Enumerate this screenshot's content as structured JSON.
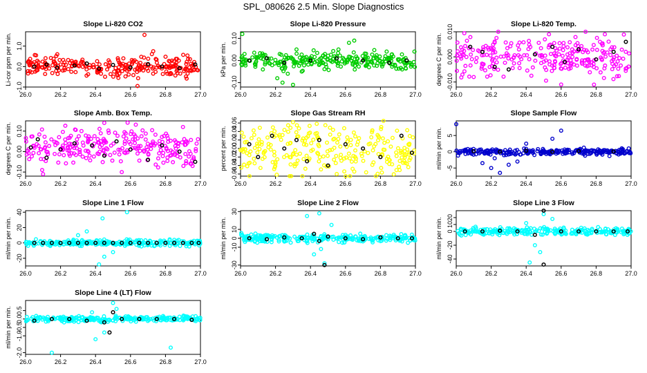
{
  "figure_title": "SPL_080626  2.5 Min. Slope Diagnostics",
  "chart_data": [
    {
      "type": "scatter",
      "title": "Slope Li-820 CO2",
      "ylabel": "Li-cor ppm per min.",
      "color": "#ff0000",
      "xlim": [
        26.0,
        27.0
      ],
      "ylim": [
        -1.0,
        1.7
      ],
      "xticks": [
        "26.0",
        "26.2",
        "26.4",
        "26.6",
        "26.8",
        "27.0"
      ],
      "yticks": [
        {
          "v": -1.0,
          "l": "-1.0"
        },
        {
          "v": 0.0,
          "l": "0.0"
        },
        {
          "v": 1.0,
          "l": "1.0"
        }
      ],
      "center": 0.0,
      "spread": 0.22,
      "outliers": [
        [
          26.68,
          1.55
        ],
        [
          26.64,
          -0.95
        ],
        [
          26.06,
          0.55
        ],
        [
          26.73,
          0.75
        ]
      ],
      "black_points": [
        [
          26.05,
          0.0
        ],
        [
          26.12,
          0.1
        ],
        [
          26.18,
          -0.05
        ],
        [
          26.28,
          0.05
        ],
        [
          26.35,
          0.15
        ],
        [
          26.42,
          -0.1
        ],
        [
          26.5,
          0.08
        ],
        [
          26.6,
          -0.05
        ],
        [
          26.7,
          0.12
        ],
        [
          26.78,
          0.0
        ],
        [
          26.88,
          -0.08
        ],
        [
          26.97,
          0.1
        ]
      ]
    },
    {
      "type": "scatter",
      "title": "Slope Li-820 Pressure",
      "ylabel": "kPa per min.",
      "color": "#00cc00",
      "xlim": [
        26.0,
        27.0
      ],
      "ylim": [
        -0.12,
        0.13
      ],
      "xticks": [
        "26.0",
        "26.2",
        "26.4",
        "26.6",
        "26.8",
        "27.0"
      ],
      "yticks": [
        {
          "v": -0.1,
          "l": "-0.10"
        },
        {
          "v": 0.0,
          "l": "0.00"
        },
        {
          "v": 0.1,
          "l": "0.10"
        }
      ],
      "center": 0.0,
      "spread": 0.018,
      "outliers": [
        [
          26.01,
          0.12
        ],
        [
          26.24,
          -0.1
        ],
        [
          26.27,
          -0.06
        ],
        [
          26.3,
          -0.11
        ],
        [
          26.32,
          0.05
        ],
        [
          26.62,
          0.08
        ],
        [
          26.65,
          0.09
        ],
        [
          26.56,
          0.05
        ],
        [
          26.21,
          -0.08
        ],
        [
          26.35,
          -0.05
        ]
      ],
      "black_points": [
        [
          26.05,
          0.0
        ],
        [
          26.15,
          0.01
        ],
        [
          26.25,
          -0.01
        ],
        [
          26.4,
          0.0
        ],
        [
          26.55,
          0.01
        ],
        [
          26.7,
          0.0
        ],
        [
          26.85,
          -0.01
        ],
        [
          26.95,
          0.0
        ]
      ]
    },
    {
      "type": "scatter",
      "title": "Slope Li-820 Temp.",
      "ylabel": "degrees C per min.",
      "color": "#ff00ff",
      "xlim": [
        26.0,
        27.0
      ],
      "ylim": [
        -0.012,
        0.01
      ],
      "xticks": [
        "26.0",
        "26.2",
        "26.4",
        "26.6",
        "26.8",
        "27.0"
      ],
      "yticks": [
        {
          "v": -0.01,
          "l": "-0.010"
        },
        {
          "v": 0.0,
          "l": "0.000"
        },
        {
          "v": 0.01,
          "l": "0.010"
        }
      ],
      "center": 0.0,
      "spread": 0.004,
      "outliers": [
        [
          26.6,
          -0.011
        ],
        [
          26.1,
          -0.008
        ],
        [
          26.85,
          0.009
        ]
      ],
      "black_points": [
        [
          26.08,
          0.004
        ],
        [
          26.15,
          0.002
        ],
        [
          26.22,
          -0.004
        ],
        [
          26.3,
          -0.005
        ],
        [
          26.45,
          0.001
        ],
        [
          26.55,
          0.004
        ],
        [
          26.62,
          -0.002
        ],
        [
          26.7,
          0.003
        ],
        [
          26.8,
          -0.001
        ],
        [
          26.9,
          0.002
        ],
        [
          26.97,
          0.006
        ]
      ]
    },
    {
      "type": "scatter",
      "title": "Slope Amb. Box Temp.",
      "ylabel": "degrees C per min.",
      "color": "#ff00ff",
      "xlim": [
        26.0,
        27.0
      ],
      "ylim": [
        -0.12,
        0.15
      ],
      "xticks": [
        "26.0",
        "26.2",
        "26.4",
        "26.6",
        "26.8",
        "27.0"
      ],
      "yticks": [
        {
          "v": -0.1,
          "l": "-0.10"
        },
        {
          "v": 0.0,
          "l": "0.00"
        },
        {
          "v": 0.1,
          "l": "0.10"
        }
      ],
      "center": 0.02,
      "spread": 0.045,
      "outliers": [
        [
          26.45,
          0.14
        ],
        [
          26.1,
          -0.11
        ],
        [
          26.55,
          -0.1
        ],
        [
          26.9,
          0.12
        ]
      ],
      "black_points": [
        [
          26.03,
          0.02
        ],
        [
          26.07,
          0.06
        ],
        [
          26.12,
          -0.03
        ],
        [
          26.2,
          0.01
        ],
        [
          26.28,
          0.04
        ],
        [
          26.38,
          0.03
        ],
        [
          26.45,
          -0.02
        ],
        [
          26.52,
          0.05
        ],
        [
          26.6,
          0.01
        ],
        [
          26.7,
          -0.04
        ],
        [
          26.78,
          0.03
        ],
        [
          26.88,
          0.0
        ],
        [
          26.97,
          -0.05
        ]
      ]
    },
    {
      "type": "scatter",
      "title": "Slope Gas Stream RH",
      "ylabel": "percent per min.",
      "color": "#ffff00",
      "xlim": [
        26.0,
        27.0
      ],
      "ylim": [
        -0.065,
        0.065
      ],
      "xticks": [
        "26.0",
        "26.2",
        "26.4",
        "26.6",
        "26.8",
        "27.0"
      ],
      "yticks": [
        {
          "v": -0.06,
          "l": "-0.06"
        },
        {
          "v": -0.04,
          "l": "-0.04"
        },
        {
          "v": -0.02,
          "l": "-0.02"
        },
        {
          "v": 0.0,
          "l": "0.00"
        },
        {
          "v": 0.02,
          "l": "0.02"
        },
        {
          "v": 0.04,
          "l": "0.04"
        },
        {
          "v": 0.06,
          "l": "0.06"
        }
      ],
      "center": 0.0,
      "spread": 0.03,
      "outliers": [
        [
          26.3,
          0.062
        ],
        [
          26.55,
          -0.06
        ]
      ],
      "black_points": [
        [
          26.05,
          0.01
        ],
        [
          26.1,
          -0.02
        ],
        [
          26.18,
          0.03
        ],
        [
          26.25,
          0.0
        ],
        [
          26.32,
          0.02
        ],
        [
          26.38,
          -0.03
        ],
        [
          26.45,
          0.02
        ],
        [
          26.5,
          -0.04
        ],
        [
          26.6,
          0.01
        ],
        [
          26.7,
          0.0
        ],
        [
          26.8,
          -0.02
        ],
        [
          26.92,
          0.03
        ],
        [
          26.98,
          -0.01
        ]
      ]
    },
    {
      "type": "scatter",
      "title": "Slope Sample Flow",
      "ylabel": "ml/min per min.",
      "color": "#0000cc",
      "xlim": [
        26.0,
        27.0
      ],
      "ylim": [
        -7.5,
        9.5
      ],
      "xticks": [
        "26.0",
        "26.2",
        "26.4",
        "26.6",
        "26.8",
        "27.0"
      ],
      "yticks": [
        {
          "v": -5,
          "l": "-5"
        },
        {
          "v": 0,
          "l": "0"
        },
        {
          "v": 5,
          "l": "5"
        }
      ],
      "center": 0.0,
      "spread": 0.5,
      "outliers": [
        [
          26.0,
          8.5
        ],
        [
          26.6,
          6.5
        ],
        [
          26.2,
          -5
        ],
        [
          26.25,
          -6.5
        ],
        [
          26.3,
          -4
        ],
        [
          26.35,
          -3
        ],
        [
          26.15,
          -3.5
        ],
        [
          26.4,
          2.5
        ],
        [
          26.55,
          4
        ],
        [
          26.22,
          -2
        ]
      ],
      "black_points": [
        [
          26.1,
          0.2
        ],
        [
          26.25,
          0.0
        ],
        [
          26.4,
          0.3
        ],
        [
          26.55,
          0.0
        ],
        [
          26.7,
          0.2
        ],
        [
          26.9,
          0.1
        ]
      ]
    },
    {
      "type": "scatter",
      "title": "Slope Line 1 Flow",
      "ylabel": "ml/min per min.",
      "color": "#00ffff",
      "xlim": [
        26.0,
        27.0
      ],
      "ylim": [
        -30,
        42
      ],
      "xticks": [
        "26.0",
        "26.2",
        "26.4",
        "26.6",
        "26.8",
        "27.0"
      ],
      "yticks": [
        {
          "v": -20,
          "l": "-20"
        },
        {
          "v": 0,
          "l": "0"
        },
        {
          "v": 20,
          "l": "20"
        },
        {
          "v": 40,
          "l": "40"
        }
      ],
      "center": 0.0,
      "spread": 2.0,
      "outliers": [
        [
          26.44,
          32
        ],
        [
          26.58,
          40
        ],
        [
          26.42,
          -28
        ],
        [
          26.35,
          15
        ],
        [
          26.5,
          -12
        ],
        [
          26.45,
          -18
        ],
        [
          26.3,
          10
        ]
      ],
      "black_points": [
        [
          26.05,
          0
        ],
        [
          26.1,
          0
        ],
        [
          26.15,
          0
        ],
        [
          26.2,
          0
        ],
        [
          26.25,
          0
        ],
        [
          26.3,
          0
        ],
        [
          26.35,
          0
        ],
        [
          26.4,
          0
        ],
        [
          26.45,
          0
        ],
        [
          26.5,
          0
        ],
        [
          26.55,
          0
        ],
        [
          26.6,
          0
        ],
        [
          26.65,
          0
        ],
        [
          26.7,
          0
        ],
        [
          26.75,
          0
        ],
        [
          26.8,
          0
        ],
        [
          26.85,
          0
        ],
        [
          26.9,
          0
        ],
        [
          26.95,
          0
        ],
        [
          26.99,
          0
        ]
      ]
    },
    {
      "type": "scatter",
      "title": "Slope Line 2 Flow",
      "ylabel": "ml/min per min.",
      "color": "#00ffff",
      "xlim": [
        26.0,
        27.0
      ],
      "ylim": [
        -31,
        31
      ],
      "xticks": [
        "26.0",
        "26.2",
        "26.4",
        "26.6",
        "26.8",
        "27.0"
      ],
      "yticks": [
        {
          "v": -30,
          "l": "-30"
        },
        {
          "v": -10,
          "l": "-10"
        },
        {
          "v": 0,
          "l": "0"
        },
        {
          "v": 10,
          "l": "10"
        },
        {
          "v": 30,
          "l": "30"
        }
      ],
      "center": 0.0,
      "spread": 2.5,
      "outliers": [
        [
          26.38,
          25
        ],
        [
          26.45,
          28
        ],
        [
          26.48,
          -28
        ],
        [
          26.42,
          -18
        ],
        [
          26.52,
          15
        ],
        [
          26.46,
          -12
        ]
      ],
      "black_points": [
        [
          26.05,
          0
        ],
        [
          26.15,
          -1
        ],
        [
          26.25,
          1
        ],
        [
          26.35,
          0
        ],
        [
          26.42,
          5
        ],
        [
          26.45,
          -3
        ],
        [
          26.48,
          -30
        ],
        [
          26.5,
          2
        ],
        [
          26.6,
          0
        ],
        [
          26.7,
          -1
        ],
        [
          26.8,
          1
        ],
        [
          26.9,
          0
        ],
        [
          26.98,
          0
        ]
      ]
    },
    {
      "type": "scatter",
      "title": "Slope Line 3 Flow",
      "ylabel": "ml/min per min.",
      "color": "#00ffff",
      "xlim": [
        26.0,
        27.0
      ],
      "ylim": [
        -50,
        30
      ],
      "xticks": [
        "26.0",
        "26.2",
        "26.4",
        "26.6",
        "26.8",
        "27.0"
      ],
      "yticks": [
        {
          "v": -40,
          "l": "-40"
        },
        {
          "v": -20,
          "l": "-20"
        },
        {
          "v": 0,
          "l": "0"
        },
        {
          "v": 10,
          "l": "10"
        },
        {
          "v": 20,
          "l": "20"
        }
      ],
      "center": 0.0,
      "spread": 2.5,
      "outliers": [
        [
          26.42,
          -45
        ],
        [
          26.5,
          25
        ],
        [
          26.48,
          -30
        ],
        [
          26.55,
          18
        ],
        [
          26.4,
          12
        ],
        [
          26.45,
          -20
        ]
      ],
      "black_points": [
        [
          26.05,
          0
        ],
        [
          26.15,
          0
        ],
        [
          26.25,
          1
        ],
        [
          26.35,
          0
        ],
        [
          26.45,
          -5
        ],
        [
          26.5,
          30
        ],
        [
          26.5,
          -48
        ],
        [
          26.6,
          0
        ],
        [
          26.7,
          0
        ],
        [
          26.8,
          0
        ],
        [
          26.9,
          0
        ],
        [
          26.98,
          0
        ]
      ]
    },
    {
      "type": "scatter",
      "title": "Slope Line 4 (LT) Flow",
      "ylabel": "ml/min per min.",
      "color": "#00ffff",
      "xlim": [
        26.0,
        27.0
      ],
      "ylim": [
        -2.1,
        1.1
      ],
      "xticks": [
        "26.0",
        "26.2",
        "26.4",
        "26.6",
        "26.8",
        "27.0"
      ],
      "yticks": [
        {
          "v": -2.0,
          "l": "-2.0"
        },
        {
          "v": -1.0,
          "l": "-1.0"
        },
        {
          "v": -0.5,
          "l": "-0.5"
        },
        {
          "v": 0.0,
          "l": "0.0"
        },
        {
          "v": 0.5,
          "l": "0.5"
        }
      ],
      "center": 0.0,
      "spread": 0.08,
      "outliers": [
        [
          26.15,
          -2.0
        ],
        [
          26.83,
          -1.7
        ],
        [
          26.5,
          0.95
        ],
        [
          26.4,
          -1.2
        ],
        [
          26.52,
          0.6
        ],
        [
          26.45,
          -0.8
        ],
        [
          26.38,
          0.4
        ]
      ],
      "black_points": [
        [
          26.05,
          -0.1
        ],
        [
          26.15,
          0.0
        ],
        [
          26.25,
          0.0
        ],
        [
          26.35,
          -0.1
        ],
        [
          26.45,
          -0.2
        ],
        [
          26.48,
          -0.8
        ],
        [
          26.5,
          0.4
        ],
        [
          26.55,
          0.0
        ],
        [
          26.65,
          0.0
        ],
        [
          26.75,
          0.0
        ],
        [
          26.85,
          0.0
        ],
        [
          26.95,
          -0.05
        ]
      ]
    }
  ]
}
